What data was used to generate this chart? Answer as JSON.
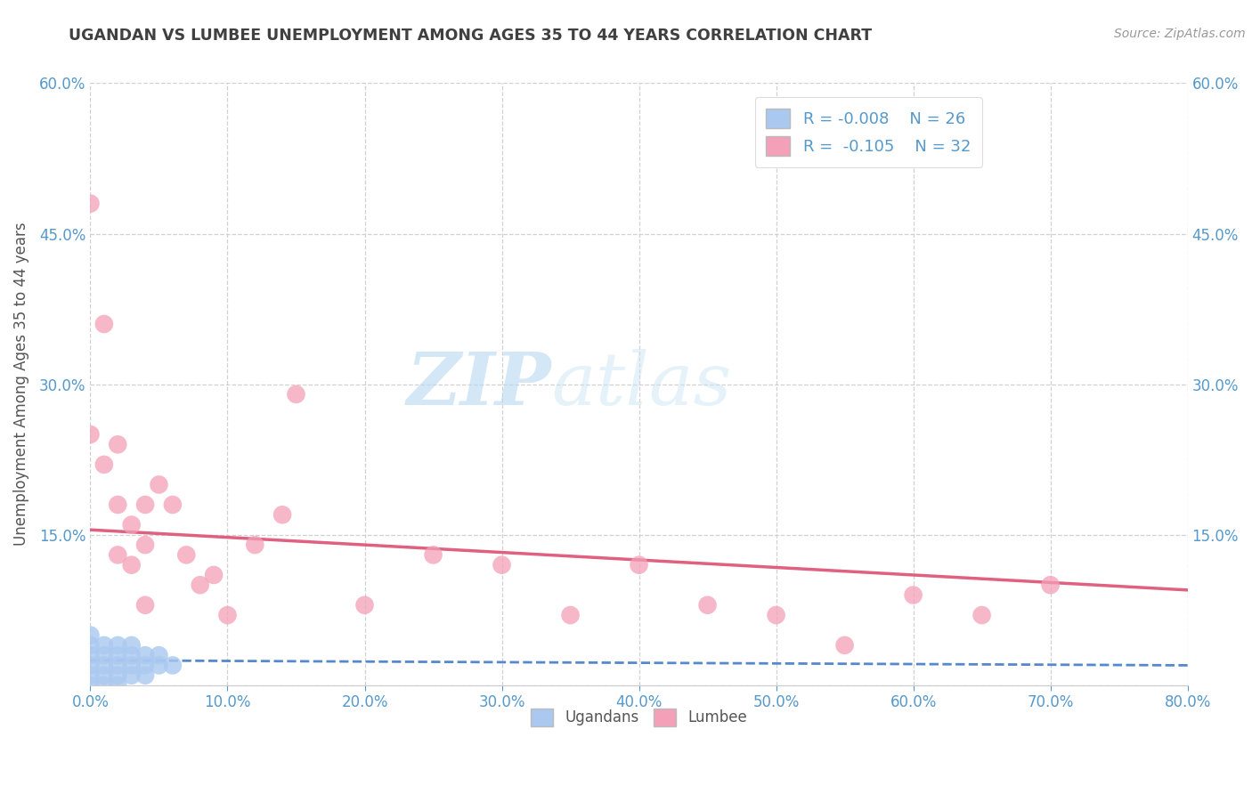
{
  "title": "UGANDAN VS LUMBEE UNEMPLOYMENT AMONG AGES 35 TO 44 YEARS CORRELATION CHART",
  "source": "Source: ZipAtlas.com",
  "ylabel": "Unemployment Among Ages 35 to 44 years",
  "xlim": [
    0,
    0.8
  ],
  "ylim": [
    0,
    0.6
  ],
  "xticks": [
    0.0,
    0.1,
    0.2,
    0.3,
    0.4,
    0.5,
    0.6,
    0.7,
    0.8
  ],
  "yticks": [
    0.0,
    0.15,
    0.3,
    0.45,
    0.6
  ],
  "ugandan_R": -0.008,
  "ugandan_N": 26,
  "lumbee_R": -0.105,
  "lumbee_N": 32,
  "ugandan_color": "#aac8f0",
  "lumbee_color": "#f4a0b8",
  "ugandan_line_color": "#5588cc",
  "lumbee_line_color": "#e06080",
  "legend_label_ugandan": "Ugandans",
  "legend_label_lumbee": "Lumbee",
  "watermark_zip": "ZIP",
  "watermark_atlas": "atlas",
  "background_color": "#ffffff",
  "grid_color": "#cccccc",
  "title_color": "#404040",
  "axis_label_color": "#555555",
  "tick_color_blue": "#5599cc",
  "lumbee_line_start_y": 0.155,
  "lumbee_line_end_y": 0.095,
  "ugandan_line_start_y": 0.025,
  "ugandan_line_end_y": 0.02,
  "ugandan_x": [
    0.0,
    0.0,
    0.0,
    0.0,
    0.0,
    0.0,
    0.01,
    0.01,
    0.01,
    0.01,
    0.01,
    0.02,
    0.02,
    0.02,
    0.02,
    0.02,
    0.03,
    0.03,
    0.03,
    0.03,
    0.04,
    0.04,
    0.04,
    0.05,
    0.05,
    0.06
  ],
  "ugandan_y": [
    0.0,
    0.01,
    0.02,
    0.03,
    0.04,
    0.05,
    0.0,
    0.01,
    0.02,
    0.03,
    0.04,
    0.0,
    0.01,
    0.02,
    0.03,
    0.04,
    0.01,
    0.02,
    0.03,
    0.04,
    0.01,
    0.02,
    0.03,
    0.02,
    0.03,
    0.02
  ],
  "lumbee_x": [
    0.0,
    0.0,
    0.01,
    0.01,
    0.02,
    0.02,
    0.02,
    0.03,
    0.03,
    0.04,
    0.04,
    0.04,
    0.05,
    0.06,
    0.07,
    0.08,
    0.09,
    0.1,
    0.12,
    0.14,
    0.15,
    0.2,
    0.25,
    0.3,
    0.35,
    0.4,
    0.45,
    0.5,
    0.55,
    0.6,
    0.65,
    0.7
  ],
  "lumbee_y": [
    0.48,
    0.25,
    0.22,
    0.36,
    0.13,
    0.18,
    0.24,
    0.12,
    0.16,
    0.18,
    0.14,
    0.08,
    0.2,
    0.18,
    0.13,
    0.1,
    0.11,
    0.07,
    0.14,
    0.17,
    0.29,
    0.08,
    0.13,
    0.12,
    0.07,
    0.12,
    0.08,
    0.07,
    0.04,
    0.09,
    0.07,
    0.1
  ]
}
